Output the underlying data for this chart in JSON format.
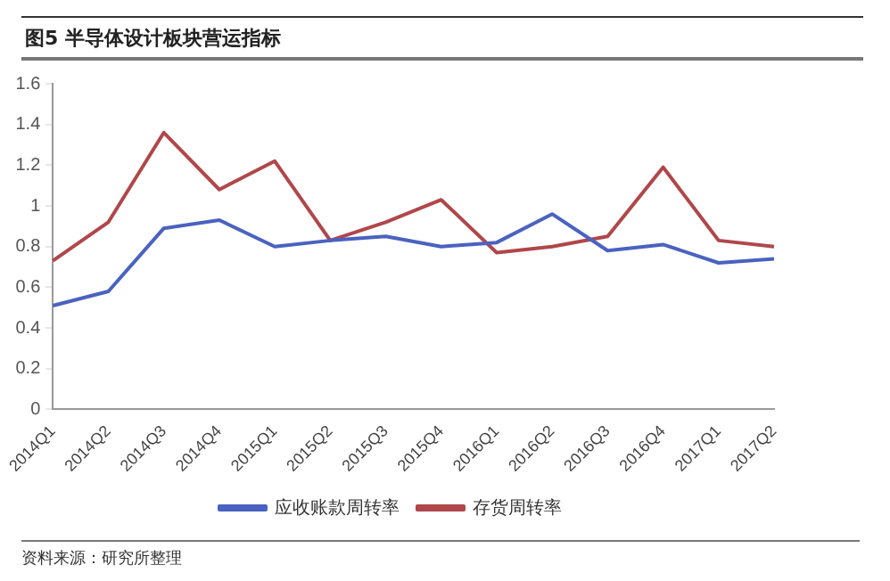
{
  "chart_data": {
    "type": "line",
    "title": "图5 半导体设计板块营运指标",
    "categories": [
      "2014Q1",
      "2014Q2",
      "2014Q3",
      "2014Q4",
      "2015Q1",
      "2015Q2",
      "2015Q3",
      "2015Q4",
      "2016Q1",
      "2016Q2",
      "2016Q3",
      "2016Q4",
      "2017Q1",
      "2017Q2"
    ],
    "series": [
      {
        "name": "应收账款周转率",
        "color": "#4a62c0",
        "values": [
          0.51,
          0.58,
          0.89,
          0.93,
          0.8,
          0.83,
          0.85,
          0.8,
          0.82,
          0.96,
          0.78,
          0.81,
          0.72,
          0.74
        ]
      },
      {
        "name": "存货周转率",
        "color": "#b0474a",
        "values": [
          0.73,
          0.92,
          1.36,
          1.08,
          1.22,
          0.83,
          0.92,
          1.03,
          0.77,
          0.8,
          0.85,
          1.19,
          0.83,
          0.8
        ]
      }
    ],
    "ylim": [
      0,
      1.6
    ],
    "yticks": [
      0,
      0.2,
      0.4,
      0.6,
      0.8,
      1,
      1.2,
      1.4,
      1.6
    ],
    "grid": false,
    "legend": "bottom",
    "marker": "none",
    "line_style": "solid",
    "annotations": [
      "资料来源：研究所整理"
    ]
  }
}
